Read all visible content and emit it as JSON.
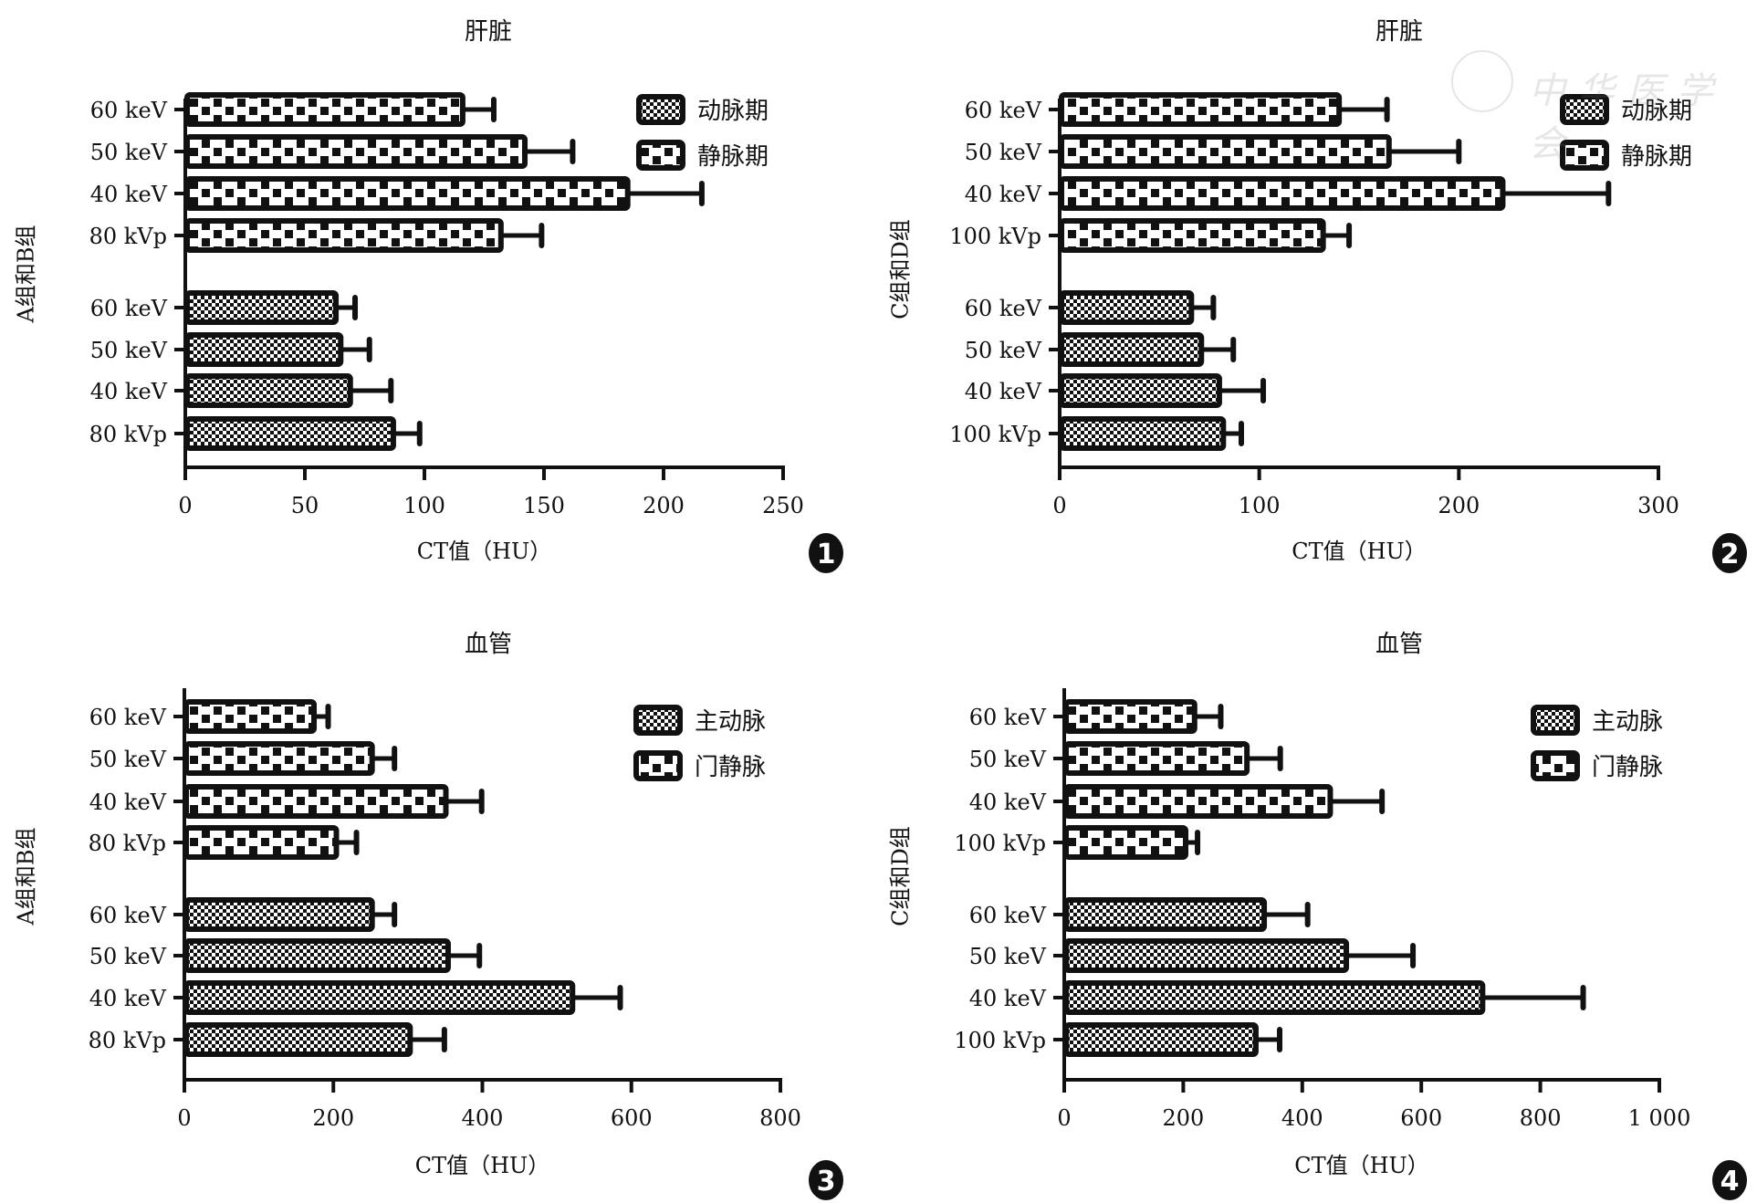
{
  "watermark": "中华医学会",
  "chart_data": [
    {
      "id": 1,
      "type": "bar",
      "orientation": "horizontal",
      "title": "肝脏",
      "xlabel": "CT值（HU）",
      "ylabel": "A组和B组",
      "badge": "1",
      "xlim": [
        0,
        250
      ],
      "xticks": [
        0,
        50,
        100,
        150,
        200,
        250
      ],
      "xtick_labels": [
        "0",
        "50",
        "100",
        "150",
        "200",
        "250"
      ],
      "legend_position": "top-right",
      "legend": [
        {
          "name": "动脉期",
          "pattern": "fine-checker"
        },
        {
          "name": "静脉期",
          "pattern": "coarse-checker"
        }
      ],
      "groups": [
        {
          "series": "静脉期",
          "pattern": "coarse-checker",
          "categories": [
            "60 keV",
            "50 keV",
            "40 keV",
            "80 kVp"
          ],
          "values": [
            116,
            142,
            185,
            132
          ],
          "error": [
            13,
            20,
            31,
            17
          ]
        },
        {
          "series": "动脉期",
          "pattern": "fine-checker",
          "categories": [
            "60 keV",
            "50 keV",
            "40 keV",
            "80 kVp"
          ],
          "values": [
            63,
            65,
            69,
            87
          ],
          "error": [
            8,
            12,
            17,
            11
          ]
        }
      ]
    },
    {
      "id": 2,
      "type": "bar",
      "orientation": "horizontal",
      "title": "肝脏",
      "xlabel": "CT值（HU）",
      "ylabel": "C组和D组",
      "badge": "2",
      "xlim": [
        0,
        300
      ],
      "xticks": [
        0,
        100,
        200,
        300
      ],
      "xtick_labels": [
        "0",
        "100",
        "200",
        "300"
      ],
      "legend_position": "top-right",
      "legend": [
        {
          "name": "动脉期",
          "pattern": "fine-checker"
        },
        {
          "name": "静脉期",
          "pattern": "coarse-checker"
        }
      ],
      "groups": [
        {
          "series": "静脉期",
          "pattern": "coarse-checker",
          "categories": [
            "60 keV",
            "50 keV",
            "40 keV",
            "100 kVp"
          ],
          "values": [
            140,
            165,
            222,
            132
          ],
          "error": [
            24,
            35,
            53,
            13
          ]
        },
        {
          "series": "动脉期",
          "pattern": "fine-checker",
          "categories": [
            "60 keV",
            "50 keV",
            "40 keV",
            "100 kVp"
          ],
          "values": [
            66,
            71,
            80,
            82
          ],
          "error": [
            11,
            16,
            22,
            9
          ]
        }
      ]
    },
    {
      "id": 3,
      "type": "bar",
      "orientation": "horizontal",
      "title": "血管",
      "xlabel": "CT值（HU）",
      "ylabel": "A组和B组",
      "badge": "3",
      "xlim": [
        0,
        800
      ],
      "xticks": [
        0,
        200,
        400,
        600,
        800
      ],
      "xtick_labels": [
        "0",
        "200",
        "400",
        "600",
        "800"
      ],
      "legend_position": "top-right",
      "legend": [
        {
          "name": "主动脉",
          "pattern": "fine-checker"
        },
        {
          "name": "门静脉",
          "pattern": "coarse-checker"
        }
      ],
      "groups": [
        {
          "series": "门静脉",
          "pattern": "coarse-checker",
          "categories": [
            "60 keV",
            "50 keV",
            "40 keV",
            "80 kVp"
          ],
          "values": [
            174,
            252,
            351,
            204
          ],
          "error": [
            19,
            30,
            48,
            27
          ]
        },
        {
          "series": "主动脉",
          "pattern": "fine-checker",
          "categories": [
            "60 keV",
            "50 keV",
            "40 keV",
            "80 kVp"
          ],
          "values": [
            252,
            354,
            521,
            303
          ],
          "error": [
            30,
            42,
            64,
            46
          ]
        }
      ]
    },
    {
      "id": 4,
      "type": "bar",
      "orientation": "horizontal",
      "title": "血管",
      "xlabel": "CT值（HU）",
      "ylabel": "C组和D组",
      "badge": "4",
      "xlim": [
        0,
        1000
      ],
      "xticks": [
        0,
        200,
        400,
        600,
        800,
        1000
      ],
      "xtick_labels": [
        "0",
        "200",
        "400",
        "600",
        "800",
        "1 000"
      ],
      "legend_position": "top-right",
      "legend": [
        {
          "name": "主动脉",
          "pattern": "fine-checker"
        },
        {
          "name": "门静脉",
          "pattern": "coarse-checker"
        }
      ],
      "groups": [
        {
          "series": "门静脉",
          "pattern": "coarse-checker",
          "categories": [
            "60 keV",
            "50 keV",
            "40 keV",
            "100 kVp"
          ],
          "values": [
            219,
            307,
            447,
            204
          ],
          "error": [
            44,
            56,
            87,
            20
          ]
        },
        {
          "series": "主动脉",
          "pattern": "fine-checker",
          "categories": [
            "60 keV",
            "50 keV",
            "40 keV",
            "100 kVp"
          ],
          "values": [
            336,
            474,
            703,
            322
          ],
          "error": [
            73,
            112,
            169,
            40
          ]
        }
      ]
    }
  ]
}
